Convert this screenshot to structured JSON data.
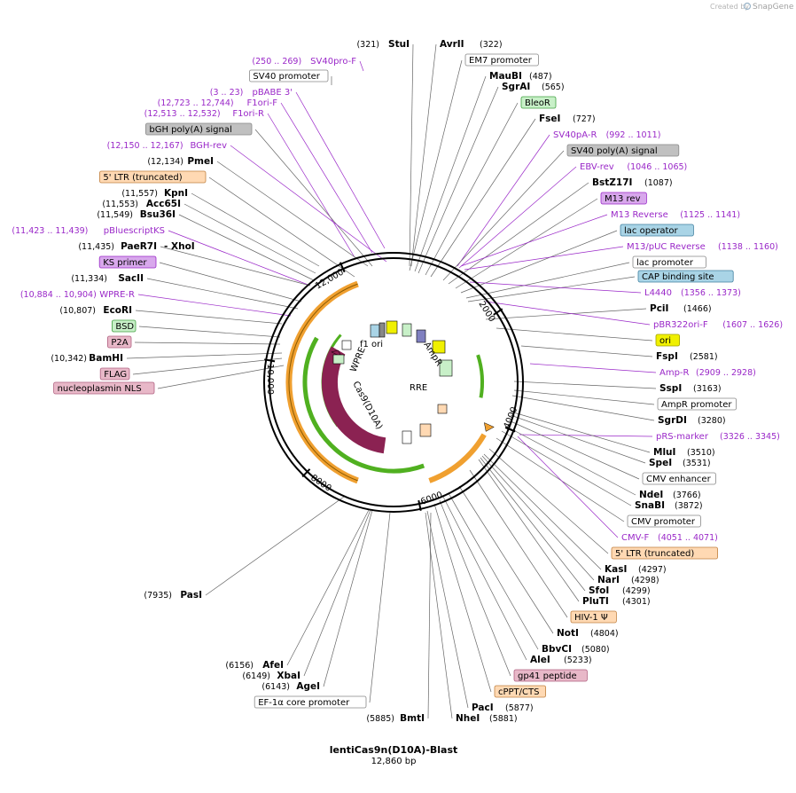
{
  "credit": {
    "created_by": "Created by",
    "brand": "SnapGene"
  },
  "plasmid": {
    "name": "lentiCas9n(D10A)-Blast",
    "size": "12,860 bp"
  },
  "ring_ticks": [
    "2000",
    "4000",
    "6000",
    "8000",
    "10,000",
    "12,000"
  ],
  "inner_labels": [
    "f1 ori",
    "AmpR",
    "RRE",
    "Cas9(D10A)",
    "WPRE"
  ],
  "colors": {
    "primer": "#9a28c8",
    "cas9": "#8b2252",
    "ampr": "#c8f0c8",
    "gold": "#f0a030",
    "green": "#50b020",
    "ori": "#f0f000",
    "ltr": "#ffd9b3",
    "misc": "#a9d4e6"
  },
  "left_labels": [
    {
      "pos": "(321)",
      "name": "StuI"
    },
    {
      "primpos": "(250 .. 269)",
      "primer": "SV40pro-F"
    },
    {
      "feature": "SV40 promoter"
    },
    {
      "primpos": "(3 .. 23)",
      "primer": "pBABE 3'"
    },
    {
      "primpos": "(12,723 .. 12,744)",
      "primer": "F1ori-F"
    },
    {
      "primpos": "(12,513 .. 12,532)",
      "primer": "F1ori-R"
    },
    {
      "feature": "bGH poly(A) signal"
    },
    {
      "primpos": "(12,150 .. 12,167)",
      "primer": "BGH-rev"
    },
    {
      "pos": "(12,134)",
      "name": "PmeI"
    },
    {
      "feature": "5' LTR (truncated)"
    },
    {
      "pos": "(11,557)",
      "name": "KpnI"
    },
    {
      "pos": "(11,553)",
      "name": "Acc65I"
    },
    {
      "pos": "(11,549)",
      "name": "Bsu36I"
    },
    {
      "primpos": "(11,423 .. 11,439)",
      "primer": "pBluescriptKS"
    },
    {
      "pos": "(11,435)",
      "name": "PaeR7I",
      "name2": "- XhoI"
    },
    {
      "feature": "KS primer"
    },
    {
      "pos": "(11,334)",
      "name": "SacII"
    },
    {
      "primpos": "(10,884 .. 10,904)",
      "primer": "WPRE-R"
    },
    {
      "pos": "(10,807)",
      "name": "EcoRI"
    },
    {
      "feature": "BSD"
    },
    {
      "feature": "P2A"
    },
    {
      "pos": "(10,342)",
      "name": "BamHI"
    },
    {
      "feature": "FLAG"
    },
    {
      "feature": "nucleoplasmin NLS"
    },
    {
      "pos": "(7935)",
      "name": "PasI"
    },
    {
      "pos": "(6156)",
      "name": "AfeI"
    },
    {
      "pos": "(6149)",
      "name": "XbaI"
    },
    {
      "pos": "(6143)",
      "name": "AgeI"
    },
    {
      "feature": "EF-1α core promoter"
    },
    {
      "pos": "(5885)",
      "name": "BmtI"
    }
  ],
  "right_labels": [
    {
      "name": "AvrII",
      "pos": "(322)"
    },
    {
      "feature": "EM7 promoter"
    },
    {
      "name": "MauBI",
      "pos": "(487)"
    },
    {
      "name": "SgrAI",
      "pos": "(565)"
    },
    {
      "feature": "BleoR"
    },
    {
      "name": "FseI",
      "pos": "(727)"
    },
    {
      "primer": "SV40pA-R",
      "primpos": "(992 .. 1011)"
    },
    {
      "feature": "SV40 poly(A) signal"
    },
    {
      "primer": "EBV-rev",
      "primpos": "(1046 .. 1065)"
    },
    {
      "name": "BstZ17I",
      "pos": "(1087)"
    },
    {
      "feature": "M13 rev"
    },
    {
      "primer": "M13 Reverse",
      "primpos": "(1125 .. 1141)"
    },
    {
      "feature": "lac operator"
    },
    {
      "primer": "M13/pUC Reverse",
      "primpos": "(1138 .. 1160)"
    },
    {
      "feature": "lac promoter"
    },
    {
      "feature": "CAP binding site"
    },
    {
      "primer": "L4440",
      "primpos": "(1356 .. 1373)"
    },
    {
      "name": "PciI",
      "pos": "(1466)"
    },
    {
      "primer": "pBR322ori-F",
      "primpos": "(1607 .. 1626)"
    },
    {
      "feature": "ori"
    },
    {
      "name": "FspI",
      "pos": "(2581)"
    },
    {
      "primer": "Amp-R",
      "primpos": "(2909 .. 2928)"
    },
    {
      "name": "SspI",
      "pos": "(3163)"
    },
    {
      "feature": "AmpR promoter"
    },
    {
      "name": "SgrDI",
      "pos": "(3280)"
    },
    {
      "primer": "pRS-marker",
      "primpos": "(3326 .. 3345)"
    },
    {
      "name": "MluI",
      "pos": "(3510)"
    },
    {
      "name": "SpeI",
      "pos": "(3531)"
    },
    {
      "feature": "CMV enhancer"
    },
    {
      "name": "NdeI",
      "pos": "(3766)"
    },
    {
      "name": "SnaBI",
      "pos": "(3872)"
    },
    {
      "feature": "CMV promoter"
    },
    {
      "primer": "CMV-F",
      "primpos": "(4051 .. 4071)"
    },
    {
      "feature": "5' LTR (truncated)"
    },
    {
      "name": "KasI",
      "pos": "(4297)"
    },
    {
      "name": "NarI",
      "pos": "(4298)"
    },
    {
      "name": "SfoI",
      "pos": "(4299)"
    },
    {
      "name": "PluTI",
      "pos": "(4301)"
    },
    {
      "feature": "HIV-1 Ψ"
    },
    {
      "name": "NotI",
      "pos": "(4804)"
    },
    {
      "name": "BbvCI",
      "pos": "(5080)"
    },
    {
      "name": "AleI",
      "pos": "(5233)"
    },
    {
      "feature": "gp41 peptide"
    },
    {
      "feature": "cPPT/CTS"
    },
    {
      "name": "PacI",
      "pos": "(5877)"
    },
    {
      "name": "NheI",
      "pos": "(5881)"
    }
  ]
}
